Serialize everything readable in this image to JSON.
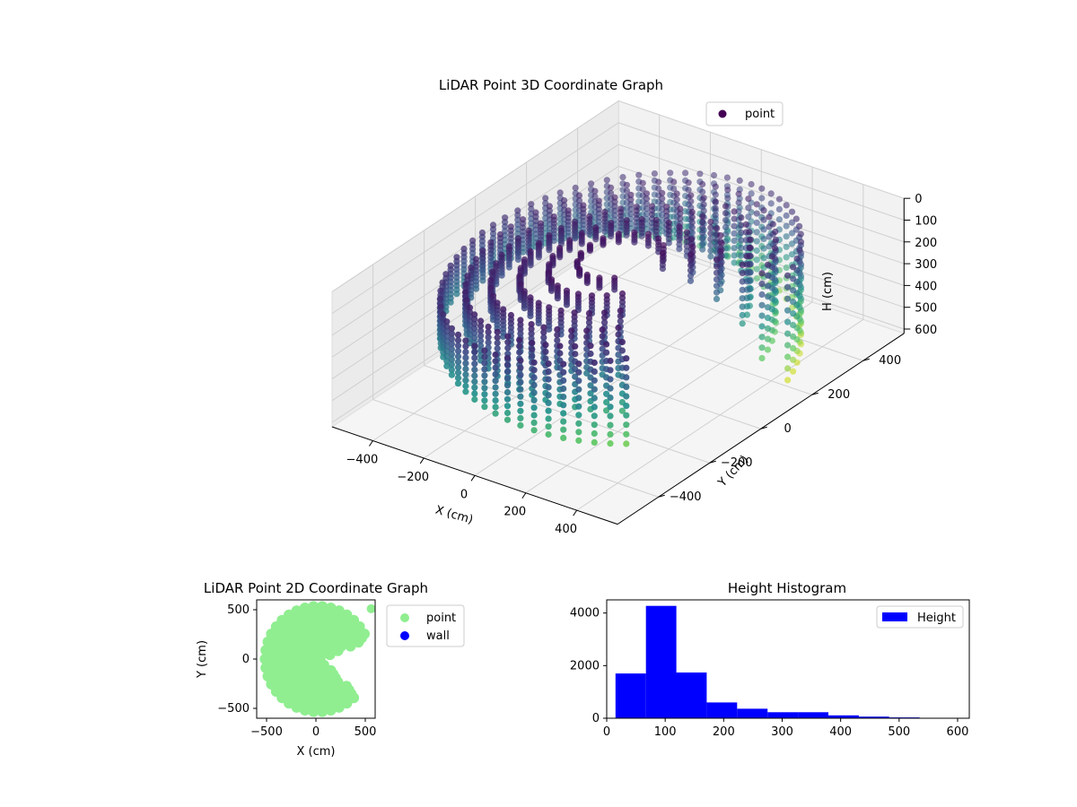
{
  "chart_data": [
    {
      "type": "scatter",
      "projection": "3d",
      "title": "LiDAR Point 3D Coordinate Graph",
      "xlabel": "X (cm)",
      "ylabel": "Y (cm)",
      "zlabel": "H (cm)",
      "xticks": [
        -400,
        -200,
        0,
        200,
        400
      ],
      "yticks": [
        -400,
        -200,
        0,
        200,
        400
      ],
      "zticks": [
        0,
        100,
        200,
        300,
        400,
        500,
        600
      ],
      "xlim": [
        -560,
        560
      ],
      "ylim": [
        -560,
        560
      ],
      "zlim": [
        0,
        620
      ],
      "z_inverted": true,
      "colormap": "viridis",
      "legend": {
        "position": "top-right",
        "entries": [
          "point"
        ]
      },
      "series": [
        {
          "name": "point",
          "description": "scan rings spiralling outward, color by height",
          "rings": [
            {
              "radius": 120,
              "h_min": 20,
              "h_max": 90
            },
            {
              "radius": 200,
              "h_min": 30,
              "h_max": 150
            },
            {
              "radius": 280,
              "h_min": 40,
              "h_max": 220
            },
            {
              "radius": 360,
              "h_min": 50,
              "h_max": 320
            },
            {
              "radius": 430,
              "h_min": 60,
              "h_max": 450
            },
            {
              "radius": 500,
              "h_min": 80,
              "h_max": 560
            }
          ],
          "gap_angle_deg": [
            -40,
            20
          ]
        }
      ],
      "grid": true
    },
    {
      "type": "scatter",
      "title": "LiDAR Point 2D Coordinate Graph",
      "xlabel": "X (cm)",
      "ylabel": "Y (cm)",
      "xticks": [
        -500,
        0,
        500
      ],
      "yticks": [
        -500,
        0,
        500
      ],
      "xlim": [
        -600,
        600
      ],
      "ylim": [
        -600,
        600
      ],
      "legend": {
        "position": "outside-right",
        "entries": [
          "point",
          "wall"
        ]
      },
      "series": [
        {
          "name": "point",
          "color": "#90ee90",
          "shape": "disk with wedge gap",
          "radius": 560,
          "gap_angle_deg": [
            -40,
            20
          ]
        },
        {
          "name": "wall",
          "color": "#0000ff",
          "points": []
        }
      ]
    },
    {
      "type": "bar",
      "subtype": "histogram",
      "title": "Height Histogram",
      "xlabel": "",
      "ylabel": "",
      "xticks": [
        0,
        100,
        200,
        300,
        400,
        500,
        600
      ],
      "yticks": [
        0,
        2000,
        4000
      ],
      "xlim": [
        0,
        620
      ],
      "ylim": [
        0,
        4500
      ],
      "color": "#0000ff",
      "legend": {
        "position": "top-right",
        "entries": [
          "Height"
        ]
      },
      "bins": [
        {
          "x0": 15,
          "x1": 67,
          "count": 1700
        },
        {
          "x0": 67,
          "x1": 119,
          "count": 4270
        },
        {
          "x0": 119,
          "x1": 171,
          "count": 1740
        },
        {
          "x0": 171,
          "x1": 223,
          "count": 600
        },
        {
          "x0": 223,
          "x1": 275,
          "count": 360
        },
        {
          "x0": 275,
          "x1": 327,
          "count": 230
        },
        {
          "x0": 327,
          "x1": 379,
          "count": 230
        },
        {
          "x0": 379,
          "x1": 431,
          "count": 110
        },
        {
          "x0": 431,
          "x1": 483,
          "count": 60
        },
        {
          "x0": 483,
          "x1": 535,
          "count": 30
        },
        {
          "x0": 535,
          "x1": 587,
          "count": 10
        }
      ]
    }
  ]
}
